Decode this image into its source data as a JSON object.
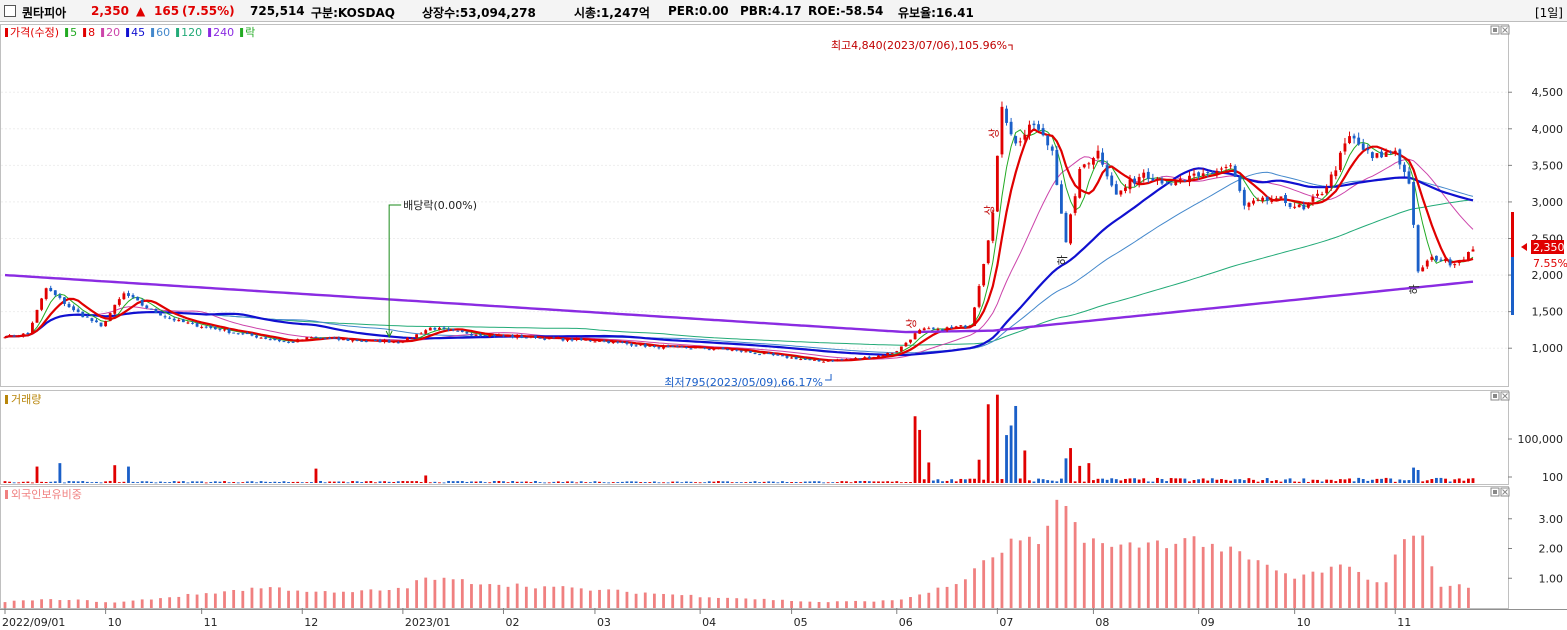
{
  "header": {
    "stock_name": "퀀타피아",
    "price": "2,350",
    "change_arrow": "▲",
    "change": "165",
    "change_pct": "(7.55%)",
    "volume": "725,514",
    "market": "구분:KOSDAQ",
    "listed_shares": "상장수:53,094,278",
    "market_cap": "시총:1,247억",
    "per": "PER:0.00",
    "pbr": "PBR:4.17",
    "roe": "ROE:-58.54",
    "float_ratio": "유보율:16.41",
    "period": "[1일]"
  },
  "colors": {
    "up": "#e00000",
    "down": "#1a5fc8",
    "ma5": "#22aa22",
    "ma8": "#e00000",
    "ma20": "#cc44aa",
    "ma45": "#1010d0",
    "ma60": "#4488cc",
    "ma120": "#22aa77",
    "ma240": "#8a2be2",
    "foreign": "#f08080"
  },
  "chart_data": [
    {
      "type": "candlestick",
      "title": "가격(수정)",
      "legend": [
        {
          "label": "가격(수정)",
          "color": "#e00000"
        },
        {
          "label": "5",
          "color": "#22aa22"
        },
        {
          "label": "8",
          "color": "#e00000"
        },
        {
          "label": "20",
          "color": "#cc44aa"
        },
        {
          "label": "45",
          "color": "#1010d0"
        },
        {
          "label": "60",
          "color": "#4488cc"
        },
        {
          "label": "120",
          "color": "#22aa77"
        },
        {
          "label": "240",
          "color": "#8a2be2"
        },
        {
          "label": "락",
          "color": "#22aa22"
        }
      ],
      "y_ticks": [
        1000,
        1500,
        2000,
        2500,
        3000,
        3500,
        4000,
        4500
      ],
      "y_tick_labels": [
        "1,000",
        "1,500",
        "2,000",
        "2,500",
        "3,000",
        "3,500",
        "4,000",
        "4,500"
      ],
      "ylim": [
        620,
        5050
      ],
      "x_labels": [
        "2022/09/01",
        "10",
        "11",
        "12",
        "2023/01",
        "02",
        "03",
        "04",
        "05",
        "06",
        "07",
        "08",
        "09",
        "10",
        "11"
      ],
      "anchors": [
        {
          "date": "2022/09/01",
          "close": 1150
        },
        {
          "date": "2022/09/08",
          "close": 1200
        },
        {
          "date": "2022/09/14",
          "close": 1820
        },
        {
          "date": "2022/09/22",
          "close": 1520
        },
        {
          "date": "2022/09/30",
          "close": 1300
        },
        {
          "date": "2022/10/07",
          "close": 1750
        },
        {
          "date": "2022/10/14",
          "close": 1550
        },
        {
          "date": "2022/10/24",
          "close": 1380
        },
        {
          "date": "2022/11/07",
          "close": 1250
        },
        {
          "date": "2022/11/28",
          "close": 1080
        },
        {
          "date": "2022/12/05",
          "close": 1150
        },
        {
          "date": "2022/12/19",
          "close": 1100
        },
        {
          "date": "2023/01/02",
          "close": 1090
        },
        {
          "date": "2023/01/10",
          "close": 1280
        },
        {
          "date": "2023/01/20",
          "close": 1200
        },
        {
          "date": "2023/02/10",
          "close": 1140
        },
        {
          "date": "2023/03/02",
          "close": 1100
        },
        {
          "date": "2023/03/20",
          "close": 1020
        },
        {
          "date": "2023/04/10",
          "close": 990
        },
        {
          "date": "2023/05/09",
          "close": 820
        },
        {
          "date": "2023/05/25",
          "close": 880
        },
        {
          "date": "2023/06/01",
          "close": 960
        },
        {
          "date": "2023/06/08",
          "close": 1250
        },
        {
          "date": "2023/06/14",
          "close": 1260
        },
        {
          "date": "2023/06/23",
          "close": 1310
        },
        {
          "date": "2023/06/27",
          "close": 1850
        },
        {
          "date": "2023/06/30",
          "close": 2850
        },
        {
          "date": "2023/07/04",
          "close": 4300
        },
        {
          "date": "2023/07/07",
          "close": 3800
        },
        {
          "date": "2023/07/13",
          "close": 4050
        },
        {
          "date": "2023/07/19",
          "close": 3700
        },
        {
          "date": "2023/07/24",
          "close": 2450
        },
        {
          "date": "2023/07/27",
          "close": 3450
        },
        {
          "date": "2023/08/02",
          "close": 3700
        },
        {
          "date": "2023/08/08",
          "close": 3100
        },
        {
          "date": "2023/08/16",
          "close": 3400
        },
        {
          "date": "2023/08/24",
          "close": 3250
        },
        {
          "date": "2023/09/01",
          "close": 3350
        },
        {
          "date": "2023/09/12",
          "close": 3500
        },
        {
          "date": "2023/09/15",
          "close": 2950
        },
        {
          "date": "2023/09/26",
          "close": 3050
        },
        {
          "date": "2023/10/04",
          "close": 2900
        },
        {
          "date": "2023/10/11",
          "close": 3200
        },
        {
          "date": "2023/10/18",
          "close": 3900
        },
        {
          "date": "2023/10/25",
          "close": 3600
        },
        {
          "date": "2023/11/01",
          "close": 3700
        },
        {
          "date": "2023/11/06",
          "close": 3250
        },
        {
          "date": "2023/11/08",
          "close": 2050
        },
        {
          "date": "2023/11/13",
          "close": 2250
        },
        {
          "date": "2023/11/20",
          "close": 2150
        },
        {
          "date": "2023/11/24",
          "close": 2350
        }
      ],
      "ma240_points": [
        {
          "date": "2022/09/01",
          "value": 2000
        },
        {
          "date": "2023/06/05",
          "value": 1220
        },
        {
          "date": "2023/06/30",
          "value": 1240
        },
        {
          "date": "2023/11/24",
          "value": 1910
        }
      ],
      "annotations": [
        {
          "text": "최고4,840(2023/07/06),105.96%",
          "date": "2023/07/06",
          "value": 4840
        },
        {
          "text": "최저795(2023/05/09),66.17%",
          "date": "2023/05/09",
          "value": 795
        },
        {
          "text": "배당락(0.00%)",
          "date": "2022/12/28",
          "value": 1180
        },
        {
          "text": "상",
          "date": "2023/06/07",
          "value": 1200
        },
        {
          "text": "상",
          "date": "2023/06/30",
          "value": 2750
        },
        {
          "text": "상",
          "date": "2023/07/03",
          "value": 3800
        },
        {
          "text": "하",
          "date": "2023/07/24",
          "value": 2450
        },
        {
          "text": "하",
          "date": "2023/11/08",
          "value": 2050
        }
      ],
      "current_price_label": "2,350",
      "current_pct_label": "7.55%"
    },
    {
      "type": "bar",
      "title": "거래량",
      "y_tick_labels": [
        "100,000",
        "100"
      ],
      "y_ticks": [
        100000,
        100
      ],
      "note": "values in shares (approximate relative heights)",
      "spikes": [
        {
          "date": "2022/09/12",
          "value": 48000
        },
        {
          "date": "2022/09/19",
          "value": 58000
        },
        {
          "date": "2022/10/05",
          "value": 52000
        },
        {
          "date": "2022/10/10",
          "value": 48000
        },
        {
          "date": "2022/12/06",
          "value": 42000
        },
        {
          "date": "2023/01/09",
          "value": 22000
        },
        {
          "date": "2023/06/07",
          "value": 195000
        },
        {
          "date": "2023/06/08",
          "value": 155000
        },
        {
          "date": "2023/06/12",
          "value": 60000
        },
        {
          "date": "2023/06/27",
          "value": 68000
        },
        {
          "date": "2023/06/29",
          "value": 230000
        },
        {
          "date": "2023/07/03",
          "value": 258000
        },
        {
          "date": "2023/07/05",
          "value": 140000
        },
        {
          "date": "2023/07/06",
          "value": 168000
        },
        {
          "date": "2023/07/07",
          "value": 225000
        },
        {
          "date": "2023/07/11",
          "value": 95000
        },
        {
          "date": "2023/07/24",
          "value": 72000
        },
        {
          "date": "2023/07/25",
          "value": 102000
        },
        {
          "date": "2023/07/27",
          "value": 50000
        },
        {
          "date": "2023/07/31",
          "value": 58000
        },
        {
          "date": "2023/11/07",
          "value": 45000
        },
        {
          "date": "2023/11/08",
          "value": 38000
        }
      ]
    },
    {
      "type": "bar",
      "title": "외국인보유비중",
      "y_ticks": [
        1,
        2,
        3
      ],
      "y_tick_labels": [
        "1.00",
        "2.00",
        "3.00"
      ],
      "ylim": [
        0,
        3.9
      ],
      "anchors": [
        {
          "date": "2022/09/01",
          "value": 0.22
        },
        {
          "date": "2022/09/20",
          "value": 0.3
        },
        {
          "date": "2022/10/05",
          "value": 0.18
        },
        {
          "date": "2022/10/25",
          "value": 0.4
        },
        {
          "date": "2022/11/21",
          "value": 0.7
        },
        {
          "date": "2022/12/12",
          "value": 0.5
        },
        {
          "date": "2023/01/02",
          "value": 0.65
        },
        {
          "date": "2023/01/09",
          "value": 1.0
        },
        {
          "date": "2023/02/01",
          "value": 0.8
        },
        {
          "date": "2023/03/02",
          "value": 0.6
        },
        {
          "date": "2023/04/03",
          "value": 0.4
        },
        {
          "date": "2023/05/09",
          "value": 0.2
        },
        {
          "date": "2023/06/01",
          "value": 0.25
        },
        {
          "date": "2023/06/20",
          "value": 0.8
        },
        {
          "date": "2023/06/29",
          "value": 1.6
        },
        {
          "date": "2023/07/07",
          "value": 2.3
        },
        {
          "date": "2023/07/17",
          "value": 2.1
        },
        {
          "date": "2023/07/21",
          "value": 3.8
        },
        {
          "date": "2023/07/27",
          "value": 2.5
        },
        {
          "date": "2023/08/07",
          "value": 2.0
        },
        {
          "date": "2023/08/21",
          "value": 2.2
        },
        {
          "date": "2023/09/01",
          "value": 2.3
        },
        {
          "date": "2023/09/15",
          "value": 1.7
        },
        {
          "date": "2023/10/02",
          "value": 1.0
        },
        {
          "date": "2023/10/16",
          "value": 1.4
        },
        {
          "date": "2023/10/30",
          "value": 0.8
        },
        {
          "date": "2023/11/02",
          "value": 2.5
        },
        {
          "date": "2023/11/10",
          "value": 2.2
        },
        {
          "date": "2023/11/14",
          "value": 0.8
        },
        {
          "date": "2023/11/24",
          "value": 0.7
        }
      ]
    }
  ]
}
